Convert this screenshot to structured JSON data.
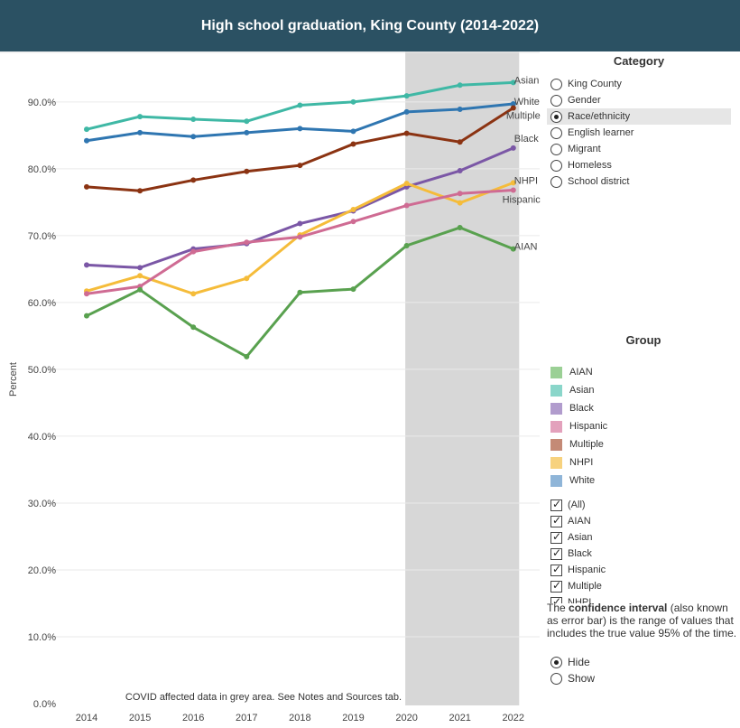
{
  "title": "High school graduation, King County (2014-2022)",
  "colors": {
    "header_bg": "#2b5163",
    "covid_shade": "#d7d7d7",
    "AIAN": "#59a14f",
    "Asian": "#3fb8a5",
    "Black": "#7b57a6",
    "Hispanic": "#cf6b93",
    "Multiple": "#8b3312",
    "NHPI": "#f5bc3a",
    "White": "#2f76b1",
    "legend_AIAN": "#9bd095",
    "legend_Asian": "#8ad6ca",
    "legend_Black": "#b19ccd",
    "legend_Hispanic": "#e3a1bc",
    "legend_Multiple": "#c48a76",
    "legend_NHPI": "#f7d27e",
    "legend_White": "#8fb5d8"
  },
  "chart_data": {
    "type": "line",
    "title": "",
    "xlabel": "",
    "ylabel": "Percent",
    "x": [
      "2014",
      "2015",
      "2016",
      "2017",
      "2018",
      "2019",
      "2020",
      "2021",
      "2022"
    ],
    "ylim": [
      0,
      97
    ],
    "yticks": [
      "0.0%",
      "10.0%",
      "20.0%",
      "30.0%",
      "40.0%",
      "50.0%",
      "60.0%",
      "70.0%",
      "80.0%",
      "90.0%"
    ],
    "grid": true,
    "shaded_region": {
      "from": "2020",
      "to": "2022"
    },
    "series": [
      {
        "name": "Asian",
        "label": "Asian",
        "values": [
          85.9,
          87.8,
          87.4,
          87.1,
          89.5,
          90.0,
          90.9,
          92.5,
          92.9
        ]
      },
      {
        "name": "White",
        "label": "White",
        "values": [
          84.2,
          85.4,
          84.8,
          85.4,
          86.0,
          85.6,
          88.5,
          88.9,
          89.7
        ]
      },
      {
        "name": "Multiple",
        "label": "Multiple",
        "values": [
          77.3,
          76.7,
          78.3,
          79.6,
          80.5,
          83.7,
          85.3,
          84.0,
          89.1
        ]
      },
      {
        "name": "Black",
        "label": "Black",
        "values": [
          65.6,
          65.2,
          68.0,
          68.8,
          71.8,
          73.7,
          77.3,
          79.7,
          83.1
        ]
      },
      {
        "name": "NHPI",
        "label": "NHPI",
        "values": [
          61.7,
          64.0,
          61.3,
          63.6,
          70.1,
          73.9,
          77.8,
          74.9,
          77.9
        ]
      },
      {
        "name": "Hispanic",
        "label": "Hispanic",
        "values": [
          61.3,
          62.4,
          67.6,
          69.0,
          69.8,
          72.1,
          74.5,
          76.3,
          76.8
        ]
      },
      {
        "name": "AIAN",
        "label": "AIAN",
        "values": [
          58.0,
          61.9,
          56.3,
          51.9,
          61.5,
          62.0,
          68.5,
          71.2,
          68.0
        ]
      }
    ],
    "annotation": "COVID affected data in grey area. See Notes and Sources tab."
  },
  "category": {
    "title": "Category",
    "options": [
      {
        "label": "King County",
        "selected": false
      },
      {
        "label": "Gender",
        "selected": false
      },
      {
        "label": "Race/ethnicity",
        "selected": true
      },
      {
        "label": "English learner",
        "selected": false
      },
      {
        "label": "Migrant",
        "selected": false
      },
      {
        "label": "Homeless",
        "selected": false
      },
      {
        "label": "School district",
        "selected": false
      }
    ]
  },
  "group": {
    "title": "Group",
    "legend": [
      "AIAN",
      "Asian",
      "Black",
      "Hispanic",
      "Multiple",
      "NHPI",
      "White"
    ],
    "filter": [
      "(All)",
      "AIAN",
      "Asian",
      "Black",
      "Hispanic",
      "Multiple",
      "NHPI"
    ]
  },
  "ci": {
    "text_before": "The ",
    "text_bold": "confidence interval",
    "text_after": " (also known as error bar) is the range of values that includes the true value 95% of the time.",
    "options": [
      {
        "label": "Hide",
        "selected": true
      },
      {
        "label": "Show",
        "selected": false
      }
    ]
  }
}
